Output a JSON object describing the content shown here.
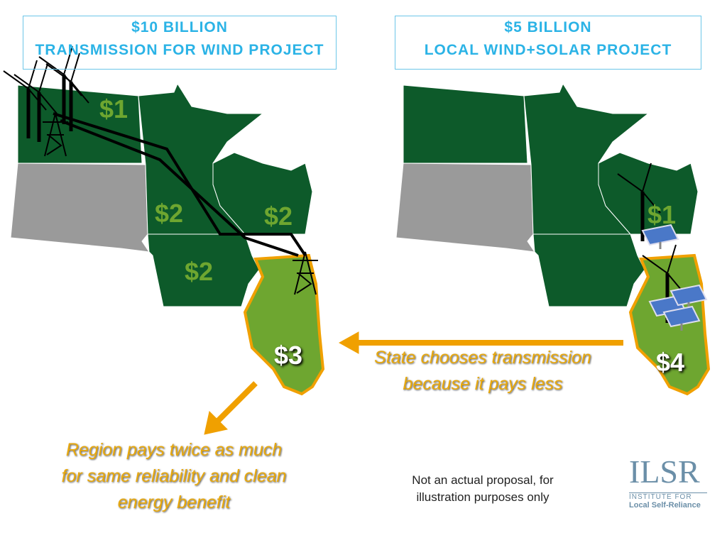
{
  "left_panel": {
    "title_lines": [
      "$10 BILLION",
      "TRANSMISSION FOR WIND PROJECT"
    ],
    "labels": [
      "$1",
      "$2",
      "$2",
      "$2",
      "$3"
    ]
  },
  "right_panel": {
    "title_lines": [
      "$5 BILLION",
      "LOCAL WIND+SOLAR PROJECT"
    ],
    "labels": [
      "$1",
      "$4"
    ]
  },
  "arrow_caption": [
    "State chooses transmission",
    "because it pays less"
  ],
  "region_caption": [
    "Region pays twice as much",
    "for same reliability and clean",
    "energy benefit"
  ],
  "disclaimer": [
    "Not an actual proposal, for",
    "illustration purposes only"
  ],
  "logo": {
    "mark": "ILSR",
    "line1": "INSTITUTE FOR",
    "line2": "Local Self-Reliance"
  }
}
